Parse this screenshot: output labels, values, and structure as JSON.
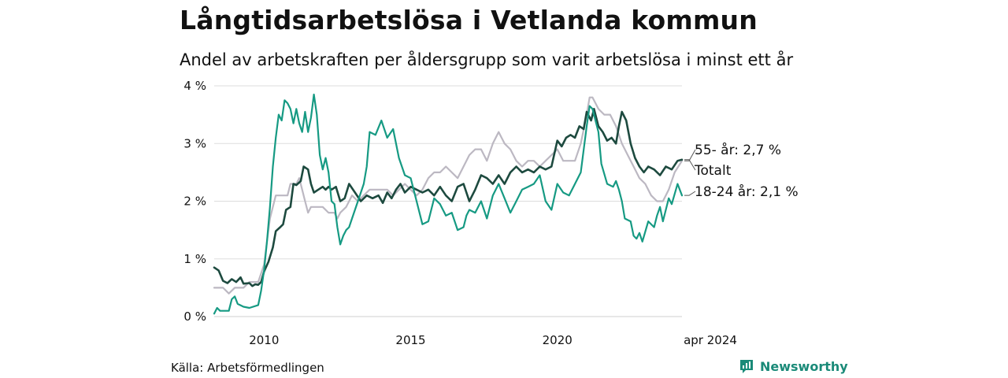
{
  "title": "Långtidsarbetslösa i Vetlanda kommun",
  "subtitle": "Andel av arbetskraften per åldersgrupp som varit arbetslösa i minst ett år",
  "source": "Källa: Arbetsförmedlingen",
  "brand": "Newsworthy",
  "colors": {
    "totalt": "#1d4a3f",
    "youth": "#169a83",
    "senior": "#bcb8c2",
    "gridline": "#dddddd",
    "brand": "#1a8a78"
  },
  "chart_data": {
    "type": "line",
    "title": "Långtidsarbetslösa i Vetlanda kommun",
    "xlabel": "",
    "ylabel": "",
    "xlim": [
      2008.3,
      2024.25
    ],
    "ylim": [
      0,
      4
    ],
    "y_ticks": [
      {
        "value": 0,
        "label": "0 %"
      },
      {
        "value": 1,
        "label": "1 %"
      },
      {
        "value": 2,
        "label": "2 %"
      },
      {
        "value": 3,
        "label": "3 %"
      },
      {
        "value": 4,
        "label": "4 %"
      }
    ],
    "x_ticks": [
      {
        "value": 2010,
        "label": "2010"
      },
      {
        "value": 2015,
        "label": "2015"
      },
      {
        "value": 2020,
        "label": "2020"
      },
      {
        "value": 2024.25,
        "label": "apr 2024"
      }
    ],
    "grid": true,
    "series": [
      {
        "name": "55- år",
        "end_label": "55- år: 2,7 %",
        "color_key": "senior",
        "points": [
          [
            2008.3,
            0.5
          ],
          [
            2008.6,
            0.5
          ],
          [
            2008.8,
            0.4
          ],
          [
            2009.0,
            0.5
          ],
          [
            2009.3,
            0.5
          ],
          [
            2009.5,
            0.6
          ],
          [
            2009.8,
            0.6
          ],
          [
            2010.0,
            0.9
          ],
          [
            2010.1,
            1.3
          ],
          [
            2010.2,
            1.7
          ],
          [
            2010.3,
            1.9
          ],
          [
            2010.4,
            2.1
          ],
          [
            2010.6,
            2.1
          ],
          [
            2010.8,
            2.1
          ],
          [
            2010.9,
            2.3
          ],
          [
            2011.1,
            2.3
          ],
          [
            2011.2,
            2.4
          ],
          [
            2011.3,
            2.2
          ],
          [
            2011.4,
            2.0
          ],
          [
            2011.5,
            1.8
          ],
          [
            2011.6,
            1.9
          ],
          [
            2011.8,
            1.9
          ],
          [
            2012.0,
            1.9
          ],
          [
            2012.2,
            1.8
          ],
          [
            2012.4,
            1.8
          ],
          [
            2012.5,
            1.7
          ],
          [
            2012.6,
            1.8
          ],
          [
            2012.8,
            1.9
          ],
          [
            2013.0,
            2.1
          ],
          [
            2013.2,
            2.0
          ],
          [
            2013.4,
            2.1
          ],
          [
            2013.6,
            2.2
          ],
          [
            2013.8,
            2.2
          ],
          [
            2014.0,
            2.2
          ],
          [
            2014.2,
            2.2
          ],
          [
            2014.4,
            2.1
          ],
          [
            2014.6,
            2.2
          ],
          [
            2014.8,
            2.3
          ],
          [
            2015.0,
            2.2
          ],
          [
            2015.2,
            2.1
          ],
          [
            2015.4,
            2.2
          ],
          [
            2015.6,
            2.4
          ],
          [
            2015.8,
            2.5
          ],
          [
            2016.0,
            2.5
          ],
          [
            2016.2,
            2.6
          ],
          [
            2016.4,
            2.5
          ],
          [
            2016.6,
            2.4
          ],
          [
            2016.8,
            2.6
          ],
          [
            2017.0,
            2.8
          ],
          [
            2017.2,
            2.9
          ],
          [
            2017.4,
            2.9
          ],
          [
            2017.6,
            2.7
          ],
          [
            2017.8,
            3.0
          ],
          [
            2018.0,
            3.2
          ],
          [
            2018.2,
            3.0
          ],
          [
            2018.4,
            2.9
          ],
          [
            2018.6,
            2.7
          ],
          [
            2018.8,
            2.6
          ],
          [
            2019.0,
            2.7
          ],
          [
            2019.2,
            2.7
          ],
          [
            2019.4,
            2.6
          ],
          [
            2019.6,
            2.7
          ],
          [
            2019.8,
            2.8
          ],
          [
            2020.0,
            2.9
          ],
          [
            2020.2,
            2.7
          ],
          [
            2020.4,
            2.7
          ],
          [
            2020.6,
            2.7
          ],
          [
            2020.8,
            3.0
          ],
          [
            2021.0,
            3.5
          ],
          [
            2021.1,
            3.8
          ],
          [
            2021.2,
            3.8
          ],
          [
            2021.4,
            3.6
          ],
          [
            2021.6,
            3.5
          ],
          [
            2021.8,
            3.5
          ],
          [
            2022.0,
            3.3
          ],
          [
            2022.2,
            3.0
          ],
          [
            2022.4,
            2.8
          ],
          [
            2022.6,
            2.6
          ],
          [
            2022.8,
            2.4
          ],
          [
            2023.0,
            2.3
          ],
          [
            2023.2,
            2.1
          ],
          [
            2023.4,
            2.0
          ],
          [
            2023.6,
            2.0
          ],
          [
            2023.8,
            2.2
          ],
          [
            2024.0,
            2.5
          ],
          [
            2024.25,
            2.7
          ]
        ]
      },
      {
        "name": "Totalt",
        "end_label": "Totalt",
        "color_key": "totalt",
        "points": [
          [
            2008.3,
            0.85
          ],
          [
            2008.45,
            0.8
          ],
          [
            2008.6,
            0.62
          ],
          [
            2008.75,
            0.58
          ],
          [
            2008.9,
            0.65
          ],
          [
            2009.05,
            0.6
          ],
          [
            2009.2,
            0.68
          ],
          [
            2009.3,
            0.57
          ],
          [
            2009.5,
            0.58
          ],
          [
            2009.6,
            0.53
          ],
          [
            2009.7,
            0.56
          ],
          [
            2009.8,
            0.55
          ],
          [
            2009.9,
            0.6
          ],
          [
            2010.0,
            0.78
          ],
          [
            2010.15,
            0.95
          ],
          [
            2010.3,
            1.2
          ],
          [
            2010.4,
            1.48
          ],
          [
            2010.55,
            1.55
          ],
          [
            2010.65,
            1.6
          ],
          [
            2010.75,
            1.85
          ],
          [
            2010.9,
            1.9
          ],
          [
            2011.0,
            2.3
          ],
          [
            2011.1,
            2.28
          ],
          [
            2011.25,
            2.35
          ],
          [
            2011.35,
            2.6
          ],
          [
            2011.5,
            2.55
          ],
          [
            2011.6,
            2.3
          ],
          [
            2011.7,
            2.15
          ],
          [
            2011.85,
            2.2
          ],
          [
            2012.0,
            2.25
          ],
          [
            2012.1,
            2.2
          ],
          [
            2012.2,
            2.25
          ],
          [
            2012.3,
            2.2
          ],
          [
            2012.45,
            2.25
          ],
          [
            2012.6,
            2.0
          ],
          [
            2012.75,
            2.05
          ],
          [
            2012.9,
            2.3
          ],
          [
            2013.1,
            2.15
          ],
          [
            2013.3,
            2.0
          ],
          [
            2013.5,
            2.1
          ],
          [
            2013.7,
            2.05
          ],
          [
            2013.9,
            2.1
          ],
          [
            2014.05,
            1.97
          ],
          [
            2014.2,
            2.15
          ],
          [
            2014.35,
            2.05
          ],
          [
            2014.5,
            2.2
          ],
          [
            2014.65,
            2.3
          ],
          [
            2014.8,
            2.15
          ],
          [
            2015.0,
            2.25
          ],
          [
            2015.2,
            2.2
          ],
          [
            2015.4,
            2.15
          ],
          [
            2015.6,
            2.2
          ],
          [
            2015.8,
            2.1
          ],
          [
            2016.0,
            2.25
          ],
          [
            2016.2,
            2.1
          ],
          [
            2016.4,
            2.0
          ],
          [
            2016.6,
            2.25
          ],
          [
            2016.8,
            2.3
          ],
          [
            2017.0,
            2.0
          ],
          [
            2017.2,
            2.2
          ],
          [
            2017.4,
            2.45
          ],
          [
            2017.6,
            2.4
          ],
          [
            2017.8,
            2.3
          ],
          [
            2018.0,
            2.45
          ],
          [
            2018.2,
            2.3
          ],
          [
            2018.4,
            2.5
          ],
          [
            2018.6,
            2.6
          ],
          [
            2018.8,
            2.5
          ],
          [
            2019.0,
            2.55
          ],
          [
            2019.2,
            2.5
          ],
          [
            2019.4,
            2.6
          ],
          [
            2019.6,
            2.55
          ],
          [
            2019.8,
            2.6
          ],
          [
            2020.0,
            3.05
          ],
          [
            2020.15,
            2.95
          ],
          [
            2020.3,
            3.1
          ],
          [
            2020.45,
            3.15
          ],
          [
            2020.6,
            3.1
          ],
          [
            2020.75,
            3.3
          ],
          [
            2020.9,
            3.25
          ],
          [
            2021.0,
            3.55
          ],
          [
            2021.15,
            3.4
          ],
          [
            2021.25,
            3.6
          ],
          [
            2021.4,
            3.3
          ],
          [
            2021.55,
            3.2
          ],
          [
            2021.7,
            3.05
          ],
          [
            2021.85,
            3.1
          ],
          [
            2022.0,
            3.0
          ],
          [
            2022.1,
            3.3
          ],
          [
            2022.2,
            3.55
          ],
          [
            2022.35,
            3.4
          ],
          [
            2022.5,
            3.0
          ],
          [
            2022.65,
            2.75
          ],
          [
            2022.8,
            2.6
          ],
          [
            2022.95,
            2.5
          ],
          [
            2023.1,
            2.6
          ],
          [
            2023.3,
            2.55
          ],
          [
            2023.5,
            2.45
          ],
          [
            2023.7,
            2.6
          ],
          [
            2023.9,
            2.55
          ],
          [
            2024.1,
            2.7
          ],
          [
            2024.25,
            2.72
          ]
        ]
      },
      {
        "name": "18-24 år",
        "end_label": "18-24 år: 2,1 %",
        "color_key": "youth",
        "points": [
          [
            2008.3,
            0.05
          ],
          [
            2008.4,
            0.15
          ],
          [
            2008.5,
            0.1
          ],
          [
            2008.8,
            0.1
          ],
          [
            2008.9,
            0.3
          ],
          [
            2009.0,
            0.35
          ],
          [
            2009.1,
            0.22
          ],
          [
            2009.3,
            0.17
          ],
          [
            2009.5,
            0.15
          ],
          [
            2009.8,
            0.2
          ],
          [
            2009.9,
            0.45
          ],
          [
            2010.0,
            0.8
          ],
          [
            2010.1,
            1.3
          ],
          [
            2010.2,
            1.9
          ],
          [
            2010.3,
            2.6
          ],
          [
            2010.4,
            3.1
          ],
          [
            2010.5,
            3.5
          ],
          [
            2010.6,
            3.4
          ],
          [
            2010.7,
            3.75
          ],
          [
            2010.8,
            3.7
          ],
          [
            2010.9,
            3.6
          ],
          [
            2011.0,
            3.35
          ],
          [
            2011.1,
            3.6
          ],
          [
            2011.2,
            3.35
          ],
          [
            2011.3,
            3.2
          ],
          [
            2011.4,
            3.55
          ],
          [
            2011.5,
            3.2
          ],
          [
            2011.6,
            3.45
          ],
          [
            2011.7,
            3.85
          ],
          [
            2011.8,
            3.5
          ],
          [
            2011.9,
            2.8
          ],
          [
            2012.0,
            2.55
          ],
          [
            2012.1,
            2.75
          ],
          [
            2012.2,
            2.5
          ],
          [
            2012.3,
            2.0
          ],
          [
            2012.4,
            1.95
          ],
          [
            2012.5,
            1.55
          ],
          [
            2012.6,
            1.25
          ],
          [
            2012.7,
            1.4
          ],
          [
            2012.8,
            1.5
          ],
          [
            2012.9,
            1.55
          ],
          [
            2013.0,
            1.7
          ],
          [
            2013.2,
            2.0
          ],
          [
            2013.4,
            2.3
          ],
          [
            2013.5,
            2.6
          ],
          [
            2013.6,
            3.2
          ],
          [
            2013.8,
            3.15
          ],
          [
            2014.0,
            3.4
          ],
          [
            2014.2,
            3.1
          ],
          [
            2014.4,
            3.25
          ],
          [
            2014.6,
            2.75
          ],
          [
            2014.8,
            2.45
          ],
          [
            2015.0,
            2.4
          ],
          [
            2015.2,
            2.0
          ],
          [
            2015.4,
            1.6
          ],
          [
            2015.6,
            1.65
          ],
          [
            2015.8,
            2.05
          ],
          [
            2016.0,
            1.95
          ],
          [
            2016.2,
            1.75
          ],
          [
            2016.4,
            1.8
          ],
          [
            2016.6,
            1.5
          ],
          [
            2016.8,
            1.55
          ],
          [
            2016.9,
            1.75
          ],
          [
            2017.0,
            1.85
          ],
          [
            2017.2,
            1.8
          ],
          [
            2017.4,
            2.0
          ],
          [
            2017.6,
            1.7
          ],
          [
            2017.8,
            2.1
          ],
          [
            2018.0,
            2.3
          ],
          [
            2018.2,
            2.05
          ],
          [
            2018.4,
            1.8
          ],
          [
            2018.6,
            2.0
          ],
          [
            2018.8,
            2.2
          ],
          [
            2019.0,
            2.25
          ],
          [
            2019.2,
            2.3
          ],
          [
            2019.4,
            2.45
          ],
          [
            2019.6,
            2.0
          ],
          [
            2019.8,
            1.85
          ],
          [
            2020.0,
            2.3
          ],
          [
            2020.2,
            2.15
          ],
          [
            2020.4,
            2.1
          ],
          [
            2020.6,
            2.3
          ],
          [
            2020.8,
            2.5
          ],
          [
            2021.0,
            3.3
          ],
          [
            2021.1,
            3.65
          ],
          [
            2021.2,
            3.6
          ],
          [
            2021.4,
            3.2
          ],
          [
            2021.5,
            2.65
          ],
          [
            2021.7,
            2.3
          ],
          [
            2021.9,
            2.25
          ],
          [
            2022.0,
            2.35
          ],
          [
            2022.1,
            2.2
          ],
          [
            2022.2,
            2.0
          ],
          [
            2022.3,
            1.7
          ],
          [
            2022.5,
            1.65
          ],
          [
            2022.6,
            1.4
          ],
          [
            2022.7,
            1.35
          ],
          [
            2022.8,
            1.45
          ],
          [
            2022.9,
            1.3
          ],
          [
            2023.1,
            1.65
          ],
          [
            2023.3,
            1.55
          ],
          [
            2023.4,
            1.75
          ],
          [
            2023.5,
            1.9
          ],
          [
            2023.6,
            1.65
          ],
          [
            2023.8,
            2.05
          ],
          [
            2023.9,
            1.95
          ],
          [
            2024.1,
            2.3
          ],
          [
            2024.25,
            2.1
          ]
        ]
      }
    ]
  }
}
